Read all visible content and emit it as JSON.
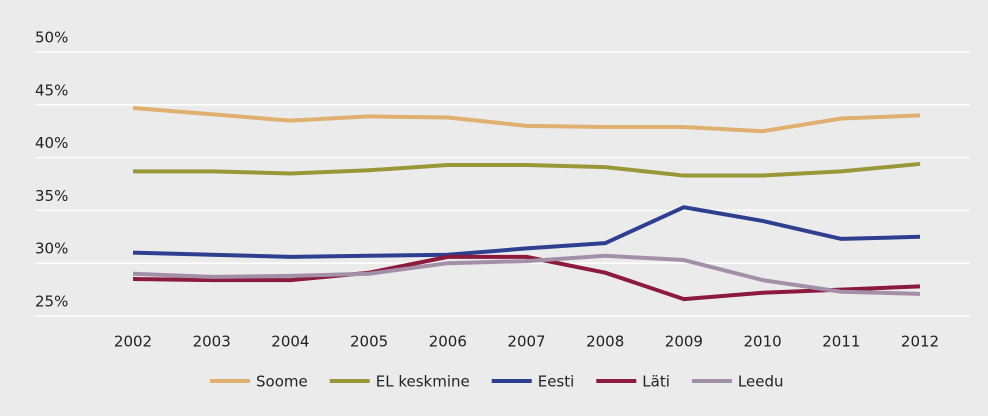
{
  "chart_data": {
    "type": "line",
    "categories": [
      "2002",
      "2003",
      "2004",
      "2005",
      "2006",
      "2007",
      "2008",
      "2009",
      "2010",
      "2011",
      "2012"
    ],
    "series": [
      {
        "name": "Soome",
        "color": "#dfb06f",
        "values": [
          44.7,
          44.1,
          43.5,
          43.9,
          43.8,
          43.0,
          42.9,
          42.9,
          42.5,
          43.7,
          44.0
        ]
      },
      {
        "name": "EL keskmine",
        "color": "#9a9738",
        "values": [
          38.7,
          38.7,
          38.5,
          38.8,
          39.3,
          39.3,
          39.1,
          38.3,
          38.3,
          38.7,
          39.4
        ]
      },
      {
        "name": "Eesti",
        "color": "#2e3f8f",
        "values": [
          31.0,
          30.8,
          30.6,
          30.7,
          30.8,
          31.4,
          31.9,
          35.3,
          34.0,
          32.3,
          32.5
        ]
      },
      {
        "name": "Läti",
        "color": "#8b1a3d",
        "values": [
          28.5,
          28.4,
          28.4,
          29.1,
          30.6,
          30.6,
          29.1,
          26.6,
          27.2,
          27.5,
          27.8
        ]
      },
      {
        "name": "Leedu",
        "color": "#a48fa9",
        "values": [
          29.0,
          28.7,
          28.8,
          29.0,
          30.0,
          30.2,
          30.7,
          30.3,
          28.4,
          27.3,
          27.1
        ]
      }
    ],
    "ylim": [
      25,
      50
    ],
    "yticks": [
      {
        "value": 25,
        "label": "25%"
      },
      {
        "value": 30,
        "label": "30%"
      },
      {
        "value": 35,
        "label": "35%"
      },
      {
        "value": 40,
        "label": "40%"
      },
      {
        "value": 45,
        "label": "45%"
      },
      {
        "value": 50,
        "label": "50%"
      }
    ],
    "grid": true
  }
}
